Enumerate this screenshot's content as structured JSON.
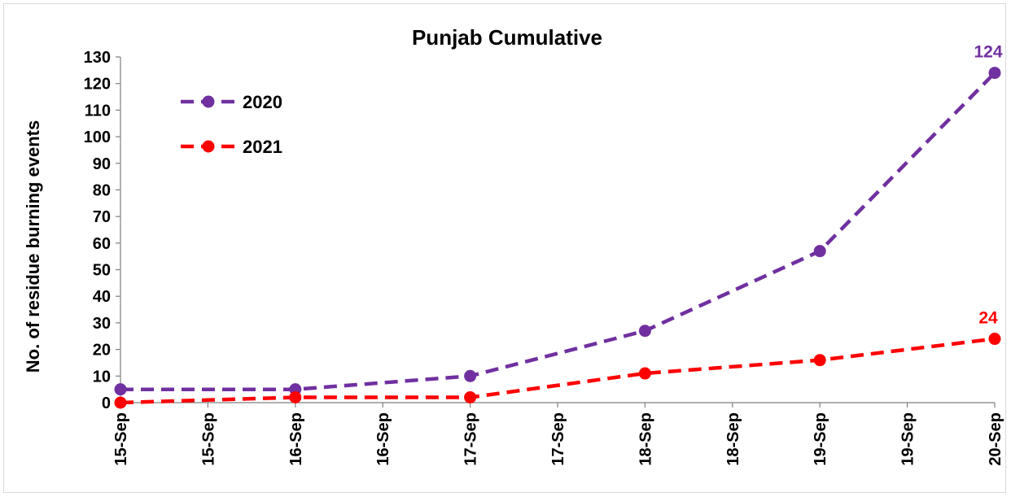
{
  "chart_data": {
    "type": "line",
    "title": "Punjab Cumulative",
    "ylabel": "No. of residue burning events",
    "xlabel": "",
    "ylim": [
      0,
      130
    ],
    "y_ticks": [
      0,
      10,
      20,
      30,
      40,
      50,
      60,
      70,
      80,
      90,
      100,
      110,
      120,
      130
    ],
    "x_tick_labels": [
      "15-Sep",
      "15-Sep",
      "16-Sep",
      "16-Sep",
      "17-Sep",
      "17-Sep",
      "18-Sep",
      "18-Sep",
      "19-Sep",
      "19-Sep",
      "20-Sep"
    ],
    "categories": [
      "15-Sep",
      "16-Sep",
      "17-Sep",
      "18-Sep",
      "19-Sep",
      "20-Sep"
    ],
    "grid": false,
    "legend_position": "top-left",
    "series": [
      {
        "name": "2020",
        "color": "#7030a0",
        "values": [
          5,
          5,
          10,
          27,
          57,
          124
        ],
        "end_label": "124"
      },
      {
        "name": "2021",
        "color": "#ff0000",
        "values": [
          0,
          2,
          2,
          11,
          16,
          24
        ],
        "end_label": "24"
      }
    ]
  }
}
